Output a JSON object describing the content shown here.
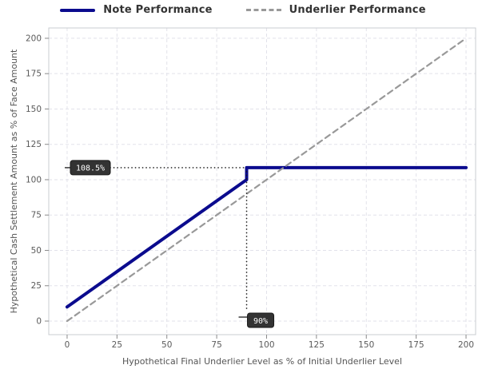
{
  "chart_data": {
    "type": "line",
    "title": "",
    "xlabel": "Hypothetical Final Underlier Level as % of Initial Underlier Level",
    "ylabel": "Hypothetical Cash Settlement Amount as % of Face Amount",
    "xlim": [
      -9.2,
      204.8
    ],
    "ylim": [
      -9.6,
      207.3
    ],
    "xticks": [
      0,
      25,
      50,
      75,
      100,
      125,
      150,
      175,
      200
    ],
    "yticks": [
      0,
      25,
      50,
      75,
      100,
      125,
      150,
      175,
      200
    ],
    "grid": true,
    "legend_position": "top-center",
    "series": [
      {
        "name": "Note Performance",
        "style": "solid",
        "color": "#0b0b8e",
        "width": 4,
        "points": [
          [
            0,
            10
          ],
          [
            90,
            100
          ],
          [
            90,
            108.5
          ],
          [
            200,
            108.5
          ]
        ]
      },
      {
        "name": "Underlier Performance",
        "style": "dashed",
        "color": "#999999",
        "width": 2.2,
        "points": [
          [
            0,
            0
          ],
          [
            200,
            200
          ]
        ]
      }
    ],
    "annotations": [
      {
        "label": "108.5%",
        "type": "hline",
        "y": 108.5,
        "x_to": 90
      },
      {
        "label": "90%",
        "type": "vline",
        "x": 90,
        "y_from": 108.5,
        "y_label": 0
      }
    ],
    "colors": {
      "note_line": "#0b0b8e",
      "underlier_line": "#999999",
      "annotation_box": "#333333",
      "annotation_text": "#ffffff",
      "dotted_connector": "#1c1c1c",
      "grid": "#e2e2ea",
      "spine": "#c9ccd1",
      "tick": "#8a8a8a",
      "tick_label": "#5a5a5a",
      "axis_label": "#555555",
      "legend_text": "#333333"
    }
  }
}
